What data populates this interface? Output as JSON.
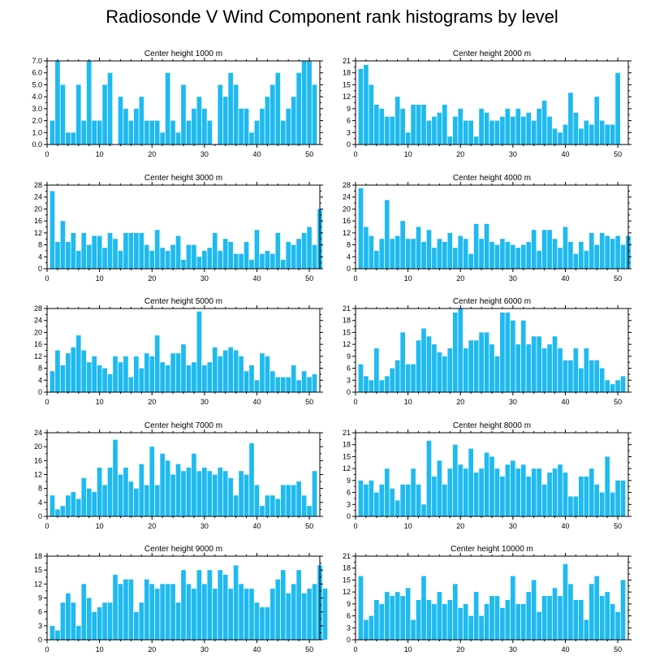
{
  "page_title": "Radiosonde V Wind Component rank histograms by level",
  "bar_color": "#1ebaf0",
  "chart_data": [
    {
      "type": "bar",
      "title": "Center height 1000 m",
      "ylim": [
        0,
        7
      ],
      "ytick_step": 1,
      "ytick_decimals": 1,
      "xlim": [
        0,
        52
      ],
      "xticks": [
        0,
        10,
        20,
        30,
        40,
        50
      ],
      "values": [
        2,
        7,
        5,
        1,
        1,
        5,
        2,
        7,
        2,
        2,
        5,
        6,
        0,
        4,
        3,
        2,
        3,
        4,
        2,
        2,
        2,
        1,
        6,
        2,
        1,
        5,
        2,
        3,
        4,
        3,
        2,
        0,
        5,
        4,
        6,
        5,
        3,
        3,
        1,
        2,
        3,
        4,
        5,
        6,
        2,
        3,
        4,
        6,
        7,
        7,
        5
      ]
    },
    {
      "type": "bar",
      "title": "Center height 2000 m",
      "ylim": [
        0,
        21
      ],
      "ytick_step": 3,
      "ytick_decimals": 0,
      "xlim": [
        0,
        52
      ],
      "xticks": [
        0,
        10,
        20,
        30,
        40,
        50
      ],
      "values": [
        19,
        20,
        15,
        10,
        9,
        7,
        7,
        12,
        9,
        3,
        10,
        10,
        10,
        6,
        7,
        8,
        10,
        2,
        7,
        9,
        6,
        6,
        2,
        9,
        8,
        6,
        6,
        7,
        9,
        7,
        9,
        7,
        8,
        6,
        9,
        11,
        7,
        4,
        3,
        5,
        13,
        8,
        4,
        6,
        5,
        12,
        6,
        5,
        5,
        18
      ]
    },
    {
      "type": "bar",
      "title": "Center height 3000 m",
      "ylim": [
        0,
        28
      ],
      "ytick_step": 4,
      "ytick_decimals": 0,
      "xlim": [
        0,
        52
      ],
      "xticks": [
        0,
        10,
        20,
        30,
        40,
        50
      ],
      "values": [
        26,
        9,
        16,
        9,
        12,
        6,
        12,
        8,
        11,
        11,
        7,
        12,
        10,
        6,
        12,
        12,
        12,
        12,
        8,
        6,
        13,
        7,
        6,
        8,
        11,
        3,
        8,
        8,
        4,
        6,
        7,
        12,
        6,
        10,
        9,
        5,
        5,
        9,
        3,
        13,
        5,
        6,
        5,
        12,
        3,
        9,
        8,
        10,
        12,
        14,
        8,
        20
      ]
    },
    {
      "type": "bar",
      "title": "Center height 4000 m",
      "ylim": [
        0,
        28
      ],
      "ytick_step": 4,
      "ytick_decimals": 0,
      "xlim": [
        0,
        52
      ],
      "xticks": [
        0,
        10,
        20,
        30,
        40,
        50
      ],
      "values": [
        27,
        14,
        11,
        6,
        10,
        23,
        10,
        11,
        16,
        10,
        10,
        14,
        9,
        13,
        7,
        10,
        9,
        12,
        7,
        11,
        10,
        5,
        15,
        10,
        15,
        9,
        8,
        10,
        9,
        8,
        7,
        8,
        9,
        13,
        6,
        13,
        13,
        10,
        7,
        14,
        9,
        5,
        9,
        6,
        12,
        8,
        12,
        11,
        10,
        11,
        8,
        11
      ]
    },
    {
      "type": "bar",
      "title": "Center height 5000 m",
      "ylim": [
        0,
        28
      ],
      "ytick_step": 4,
      "ytick_decimals": 0,
      "xlim": [
        0,
        52
      ],
      "xticks": [
        0,
        10,
        20,
        30,
        40,
        50
      ],
      "values": [
        7,
        14,
        9,
        13,
        15,
        19,
        14,
        10,
        12,
        9,
        8,
        6,
        12,
        10,
        12,
        5,
        12,
        8,
        13,
        12,
        19,
        10,
        9,
        13,
        13,
        16,
        9,
        10,
        27,
        9,
        10,
        15,
        12,
        14,
        15,
        14,
        12,
        7,
        9,
        4,
        13,
        12,
        7,
        5,
        5,
        5,
        9,
        4,
        7,
        5,
        6
      ]
    },
    {
      "type": "bar",
      "title": "Center height 6000 m",
      "ylim": [
        0,
        21
      ],
      "ytick_step": 3,
      "ytick_decimals": 0,
      "xlim": [
        0,
        52
      ],
      "xticks": [
        0,
        10,
        20,
        30,
        40,
        50
      ],
      "values": [
        7,
        4,
        3,
        11,
        3,
        4,
        6,
        8,
        15,
        7,
        7,
        13,
        16,
        14,
        12,
        10,
        9,
        11,
        20,
        21,
        11,
        13,
        13,
        15,
        15,
        12,
        9,
        20,
        20,
        18,
        12,
        18,
        12,
        14,
        14,
        11,
        12,
        14,
        11,
        8,
        8,
        11,
        6,
        11,
        8,
        8,
        6,
        3,
        2,
        3,
        4
      ]
    },
    {
      "type": "bar",
      "title": "Center height 7000 m",
      "ylim": [
        0,
        24
      ],
      "ytick_step": 4,
      "ytick_decimals": 0,
      "xlim": [
        0,
        52
      ],
      "xticks": [
        0,
        10,
        20,
        30,
        40,
        50
      ],
      "values": [
        6,
        2,
        3,
        6,
        7,
        5,
        11,
        8,
        7,
        14,
        9,
        14,
        22,
        12,
        14,
        10,
        8,
        15,
        9,
        20,
        9,
        18,
        16,
        12,
        15,
        13,
        14,
        18,
        13,
        14,
        13,
        12,
        14,
        13,
        11,
        6,
        13,
        12,
        21,
        9,
        3,
        6,
        6,
        5,
        9,
        9,
        9,
        10,
        6,
        3,
        13
      ]
    },
    {
      "type": "bar",
      "title": "Center height 8000 m",
      "ylim": [
        0,
        21
      ],
      "ytick_step": 3,
      "ytick_decimals": 0,
      "xlim": [
        0,
        52
      ],
      "xticks": [
        0,
        10,
        20,
        30,
        40,
        50
      ],
      "values": [
        9,
        8,
        9,
        6,
        8,
        12,
        7,
        4,
        8,
        8,
        12,
        8,
        3,
        19,
        10,
        14,
        8,
        12,
        18,
        13,
        12,
        17,
        11,
        12,
        16,
        15,
        12,
        10,
        13,
        14,
        12,
        13,
        10,
        12,
        12,
        8,
        11,
        12,
        13,
        11,
        5,
        5,
        10,
        10,
        12,
        8,
        6,
        15,
        6,
        9,
        9
      ]
    },
    {
      "type": "bar",
      "title": "Center height 9000 m",
      "ylim": [
        0,
        18
      ],
      "ytick_step": 3,
      "ytick_decimals": 0,
      "xlim": [
        0,
        52
      ],
      "xticks": [
        0,
        10,
        20,
        30,
        40,
        50
      ],
      "values": [
        3,
        2,
        8,
        10,
        8,
        3,
        12,
        9,
        6,
        7,
        8,
        8,
        14,
        12,
        13,
        13,
        6,
        8,
        13,
        12,
        11,
        12,
        12,
        12,
        8,
        15,
        12,
        11,
        15,
        12,
        15,
        11,
        15,
        14,
        11,
        16,
        12,
        11,
        11,
        8,
        7,
        7,
        11,
        13,
        15,
        10,
        12,
        15,
        10,
        11,
        12,
        16,
        11
      ]
    },
    {
      "type": "bar",
      "title": "Center height 10000 m",
      "ylim": [
        0,
        21
      ],
      "ytick_step": 3,
      "ytick_decimals": 0,
      "xlim": [
        0,
        52
      ],
      "xticks": [
        0,
        10,
        20,
        30,
        40,
        50
      ],
      "values": [
        16,
        5,
        6,
        10,
        9,
        12,
        11,
        12,
        11,
        13,
        5,
        10,
        16,
        10,
        9,
        12,
        9,
        10,
        14,
        8,
        9,
        6,
        12,
        6,
        9,
        11,
        11,
        8,
        10,
        16,
        9,
        9,
        12,
        15,
        7,
        11,
        11,
        13,
        11,
        19,
        14,
        10,
        10,
        5,
        14,
        16,
        11,
        12,
        9,
        7,
        15
      ]
    }
  ]
}
